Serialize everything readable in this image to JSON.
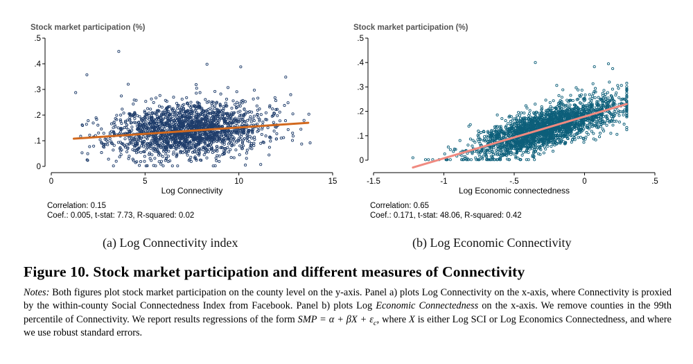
{
  "figure": {
    "title": "Figure 10. Stock market participation and different measures of Connectivity",
    "notes": {
      "label": "Notes:",
      "s1": " Both figures plot stock market participation on the county level on the y-axis. Panel a) plots Log Connectivity on the x-axis, where Connectivity is proxied by the within-county Social Connectedness Index from Facebook. Panel b) plots Log ",
      "s1_em": "Economic Connectedness",
      "s2": " on the x-axis. We remove counties in the 99th percentile of Connectivity. We report results regressions of the form ",
      "formula": "SMP = α + βX + ε",
      "formula_sub": "c",
      "s3": ", where ",
      "var": "X",
      "s4": " is either Log SCI or Log Economics Connectedness, and where we use robust standard errors."
    }
  },
  "chart_data": [
    {
      "type": "scatter",
      "panel_caption": "(a) Log Connectivity index",
      "title": "Stock market participation (%)",
      "xlabel": "Log Connectivity",
      "ylabel": "",
      "xlim": [
        0,
        15
      ],
      "ylim": [
        0,
        0.5
      ],
      "xticks": [
        0,
        5,
        10,
        15
      ],
      "xtick_labels": [
        "0",
        "5",
        "10",
        "15"
      ],
      "yticks": [
        0,
        0.1,
        0.2,
        0.3,
        0.4,
        0.5
      ],
      "ytick_labels": [
        "0",
        ".1",
        ".2",
        ".3",
        ".4",
        ".5"
      ],
      "grid": false,
      "marker_color": "#1f3d6b",
      "fit_color": "#d2691e",
      "fit_line": {
        "x": [
          1.2,
          13.7
        ],
        "y": [
          0.108,
          0.17
        ]
      },
      "cloud": {
        "x_center": 7.3,
        "x_spread": 2.0,
        "x_range": [
          1.3,
          13.8
        ],
        "y_intercept": 0.105,
        "y_slope": 0.005,
        "y_spread": 0.052
      },
      "point_count": 2000,
      "outliers": [
        {
          "x": 3.6,
          "y": 0.448
        },
        {
          "x": 1.9,
          "y": 0.357
        },
        {
          "x": 8.3,
          "y": 0.398
        },
        {
          "x": 10.1,
          "y": 0.388
        },
        {
          "x": 12.5,
          "y": 0.348
        }
      ],
      "stats": {
        "correlation": "Correlation:  0.15",
        "coef": "Coef.: 0.005, t-stat:  7.73, R-squared: 0.02"
      }
    },
    {
      "type": "scatter",
      "panel_caption": "(b) Log Economic Connectivity",
      "title": "Stock market participation (%)",
      "xlabel": "Log Economic connectedness",
      "ylabel": "",
      "xlim": [
        -1.5,
        0.5
      ],
      "ylim": [
        0,
        0.5
      ],
      "xticks": [
        -1.5,
        -1,
        -0.5,
        0,
        0.5
      ],
      "xtick_labels": [
        "-1.5",
        "-1",
        "-.5",
        "0",
        ".5"
      ],
      "yticks": [
        0,
        0.1,
        0.2,
        0.3,
        0.4,
        0.5
      ],
      "ytick_labels": [
        "0",
        ".1",
        ".2",
        ".3",
        ".4",
        ".5"
      ],
      "grid": false,
      "marker_color": "#0d5f7a",
      "fit_color": "#f08a80",
      "fit_line": {
        "x": [
          -1.22,
          0.3
        ],
        "y": [
          -0.03,
          0.23
        ]
      },
      "cloud": {
        "x_center": -0.28,
        "x_spread": 0.26,
        "x_range": [
          -1.22,
          0.3
        ],
        "y_intercept": 0.178,
        "y_slope": 0.171,
        "y_spread": 0.04
      },
      "point_count": 2400,
      "outliers": [
        {
          "x": -0.35,
          "y": 0.4
        },
        {
          "x": 0.07,
          "y": 0.383
        },
        {
          "x": 0.17,
          "y": 0.395
        },
        {
          "x": 0.2,
          "y": 0.375
        },
        {
          "x": -1.22,
          "y": 0.01
        }
      ],
      "stats": {
        "correlation": "Correlation:  0.65",
        "coef": "Coef.: 0.171, t-stat: 48.06, R-squared: 0.42"
      }
    }
  ]
}
